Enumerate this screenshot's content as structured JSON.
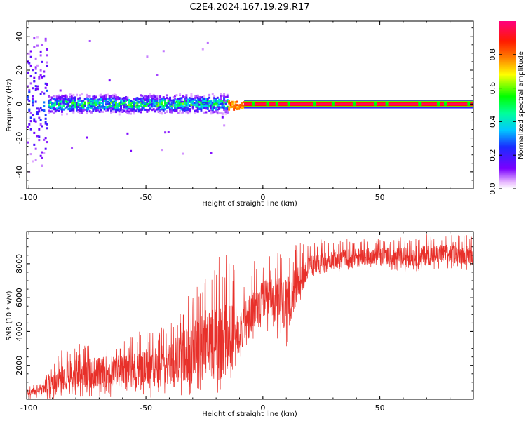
{
  "title": "C2E4.2024.167.19.29.R17",
  "colors": {
    "snr_line": "#e8302a",
    "axis": "#000000",
    "background": "#ffffff"
  },
  "chart_data": [
    {
      "type": "heatmap",
      "title": "C2E4.2024.167.19.29.R17",
      "xlabel": "Height of straight line (km)",
      "ylabel": "Frequency (Hz)",
      "xlim": [
        -101,
        90
      ],
      "ylim": [
        -50,
        49
      ],
      "x_ticks": [
        -100,
        -50,
        0,
        50
      ],
      "x_tick_labels": [
        "-100",
        "-50",
        "0",
        "50"
      ],
      "y_ticks": [
        -40,
        -20,
        0,
        20,
        40
      ],
      "y_tick_labels": [
        "-40",
        "-20",
        "0",
        "20",
        "40"
      ],
      "grid": false,
      "colorbar": {
        "label": "Normalized spectral amplitude",
        "range": [
          0,
          1
        ],
        "ticks": [
          0.0,
          0.2,
          0.4,
          0.6,
          0.8
        ],
        "tick_labels": [
          "0.0",
          "0.2",
          "0.4",
          "0.6",
          "0.8"
        ],
        "colormap": "rainbow (white-purple-blue-cyan-green-yellow-red-magenta)",
        "placement": "right"
      },
      "description_of_values": [
        {
          "x_range": [
            -101,
            -92
          ],
          "freq_center": 0,
          "freq_spread": 45,
          "peak_amplitude": 0.3
        },
        {
          "x_range": [
            -92,
            -15
          ],
          "freq_center": 0,
          "freq_spread": 6,
          "peak_amplitude": 0.5
        },
        {
          "x_range": [
            -15,
            -8
          ],
          "freq_center": -1,
          "freq_spread": 2,
          "peak_amplitude": 0.85
        },
        {
          "x_range": [
            -8,
            90
          ],
          "freq_center": 0,
          "freq_spread": 1,
          "peak_amplitude": 1.0
        }
      ]
    },
    {
      "type": "line",
      "xlabel": "Height of straight line (km)",
      "ylabel": "SNR (10 * v/v)",
      "xlim": [
        -101,
        90
      ],
      "ylim": [
        0,
        9900
      ],
      "x_ticks": [
        -100,
        -50,
        0,
        50
      ],
      "x_tick_labels": [
        "-100",
        "-50",
        "0",
        "50"
      ],
      "y_ticks": [
        2000,
        4000,
        6000,
        8000
      ],
      "y_tick_labels": [
        "2000",
        "4000",
        "6000",
        "8000"
      ],
      "grid": false,
      "series": [
        {
          "color": "#e8302a",
          "envelope": {
            "x": [
              -101,
              -95,
              -90,
              -85,
              -80,
              -70,
              -60,
              -50,
              -40,
              -30,
              -25,
              -20,
              -15,
              -10,
              -5,
              0,
              5,
              10,
              15,
              20,
              30,
              40,
              50,
              60,
              70,
              80,
              90
            ],
            "median": [
              400,
              500,
              900,
              1400,
              1500,
              1600,
              1700,
              1800,
              2200,
              2800,
              3300,
              3500,
              3600,
              4200,
              5000,
              5900,
              5700,
              5500,
              6800,
              7900,
              8300,
              8400,
              8500,
              8400,
              8500,
              8600,
              8500
            ],
            "max": [
              800,
              900,
              1900,
              3200,
              3300,
              3400,
              3600,
              4200,
              4600,
              6600,
              7100,
              9200,
              8400,
              7500,
              8100,
              8400,
              8900,
              9100,
              9200,
              9400,
              9500,
              9500,
              9500,
              9600,
              9800,
              9700,
              9700
            ],
            "min": [
              0,
              0,
              0,
              100,
              100,
              100,
              100,
              100,
              100,
              200,
              200,
              300,
              500,
              2300,
              3000,
              4300,
              3500,
              3100,
              5500,
              7200,
              7500,
              7700,
              7800,
              7500,
              7600,
              7700,
              7600
            ]
          }
        }
      ]
    }
  ]
}
